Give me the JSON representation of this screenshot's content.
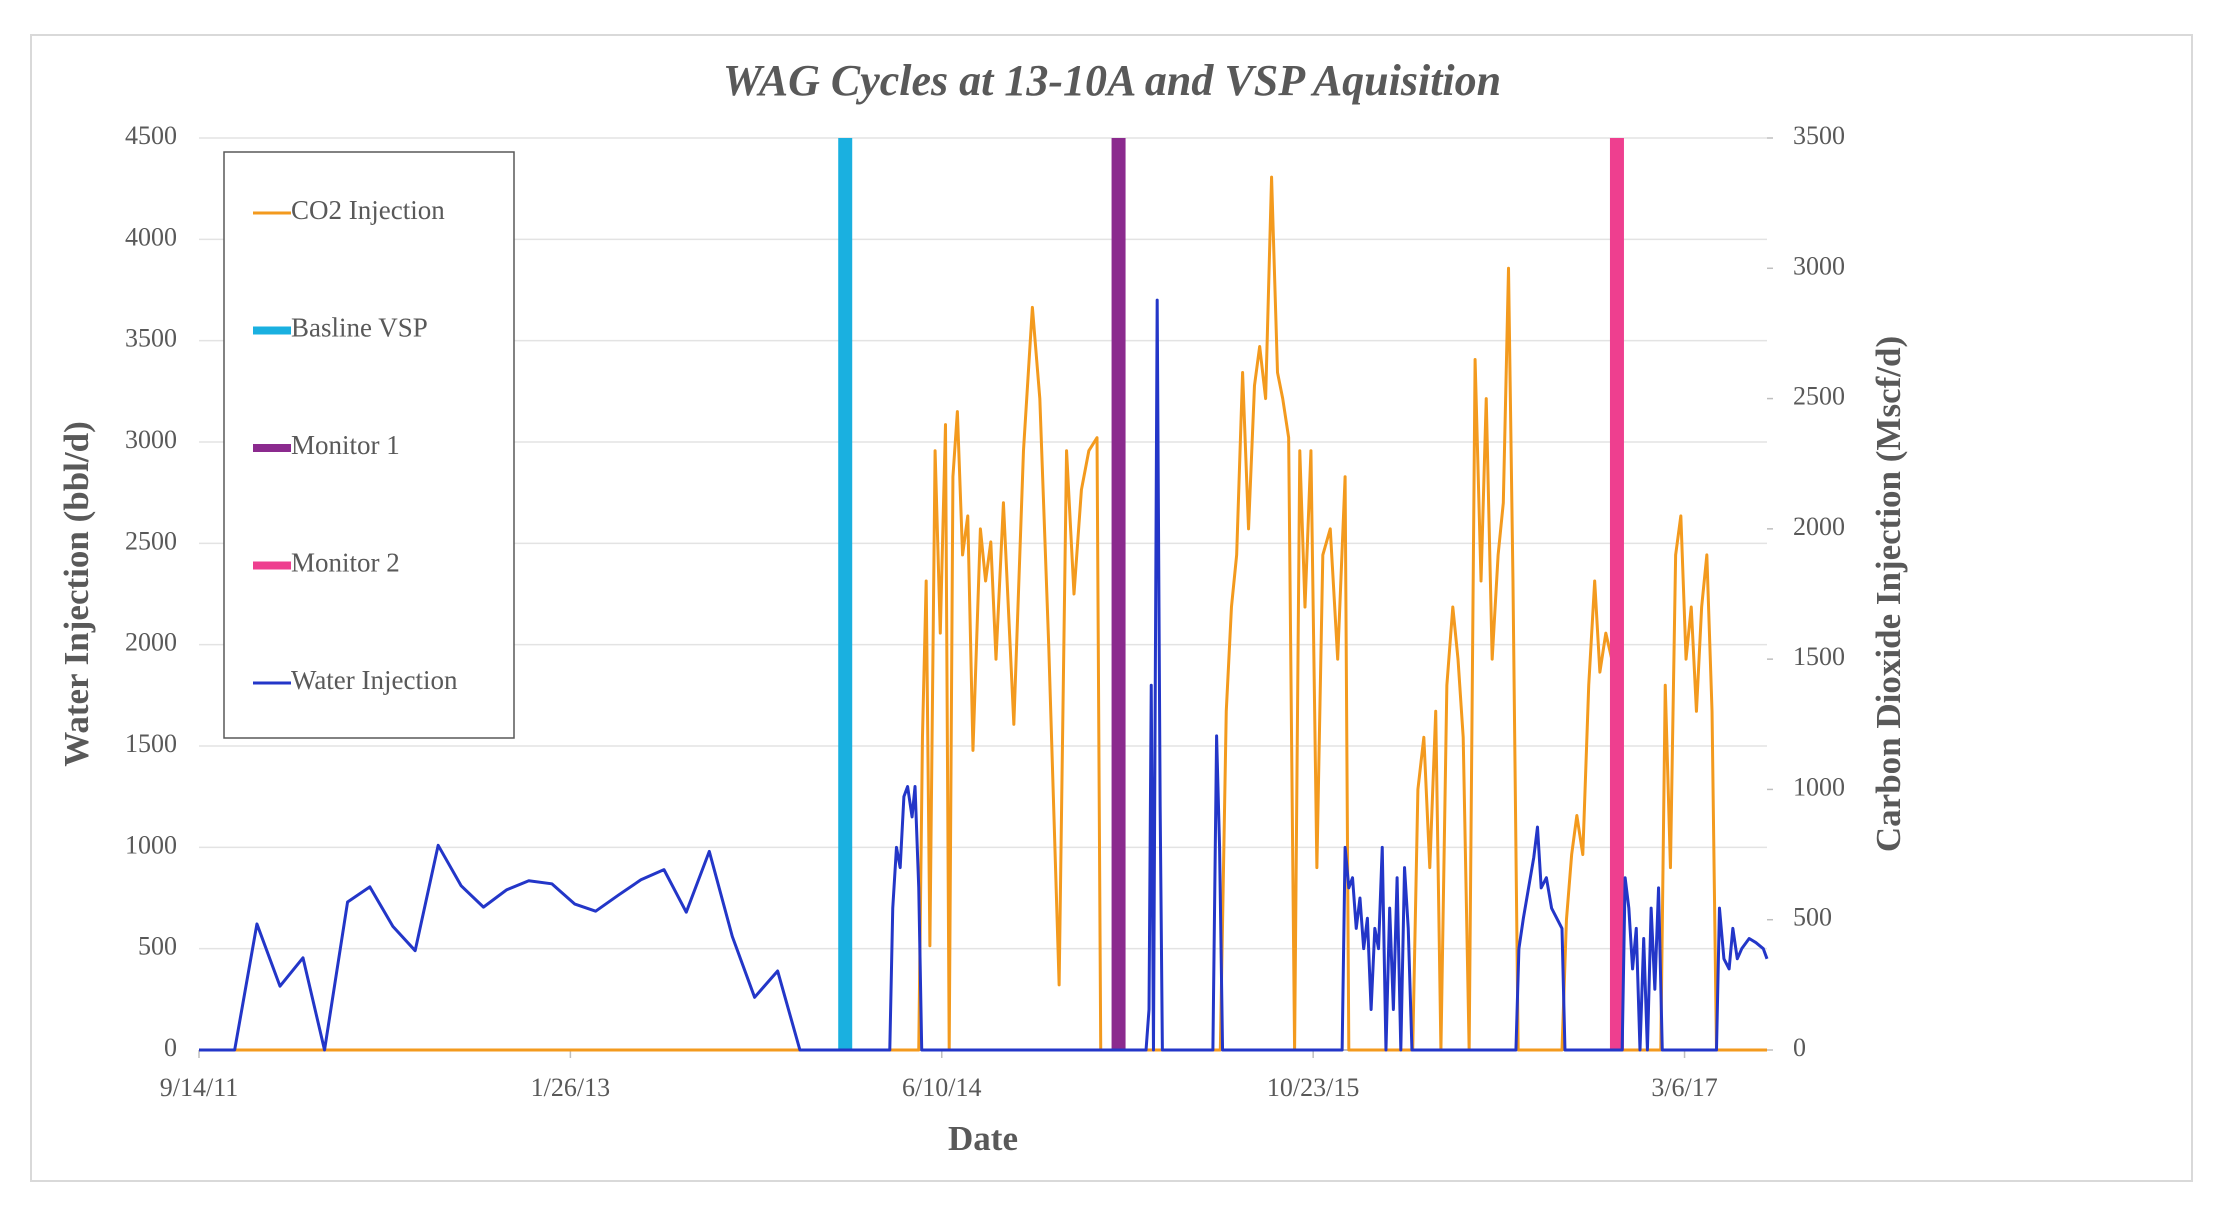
{
  "chart_data": {
    "type": "line",
    "title": "WAG Cycles at 13-10A and VSP Aquisition",
    "x_label": "Date",
    "y_label": "Water Injection (bbl/d)",
    "y2_label": "Carbon Dioxide Injection (Mscf/d)",
    "xlim": [
      "2011-09-14",
      "2017-06-25"
    ],
    "xticks": [
      {
        "value": "2011-09-14",
        "label": "9/14/11"
      },
      {
        "value": "2013-01-26",
        "label": "1/26/13"
      },
      {
        "value": "2014-06-10",
        "label": "6/10/14"
      },
      {
        "value": "2015-10-23",
        "label": "10/23/15"
      },
      {
        "value": "2017-03-06",
        "label": "3/6/17"
      }
    ],
    "ylim": [
      0,
      4500
    ],
    "yticks": [
      0,
      500,
      1000,
      1500,
      2000,
      2500,
      3000,
      3500,
      4000,
      4500
    ],
    "y2lim": [
      0,
      3500
    ],
    "y2ticks": [
      0,
      500,
      1000,
      1500,
      2000,
      2500,
      3000,
      3500
    ],
    "grid": true,
    "legend": "upper left",
    "series": [
      {
        "name": "CO2 Injection",
        "color": "#f39a1e",
        "axis": "y2",
        "x": [
          "2011-09-14",
          "2014-05-10",
          "2014-05-15",
          "2014-05-20",
          "2014-05-25",
          "2014-06-01",
          "2014-06-08",
          "2014-06-15",
          "2014-06-20",
          "2014-06-25",
          "2014-07-01",
          "2014-07-08",
          "2014-07-15",
          "2014-07-22",
          "2014-08-01",
          "2014-08-08",
          "2014-08-15",
          "2014-08-22",
          "2014-09-01",
          "2014-09-15",
          "2014-09-28",
          "2014-10-10",
          "2014-10-20",
          "2014-11-01",
          "2014-11-15",
          "2014-11-25",
          "2014-12-05",
          "2014-12-15",
          "2014-12-25",
          "2015-01-05",
          "2015-01-10",
          "2015-06-20",
          "2015-06-28",
          "2015-07-05",
          "2015-07-12",
          "2015-07-20",
          "2015-07-28",
          "2015-08-05",
          "2015-08-12",
          "2015-08-20",
          "2015-08-28",
          "2015-09-05",
          "2015-09-12",
          "2015-09-20",
          "2015-09-28",
          "2015-10-05",
          "2015-10-12",
          "2015-10-20",
          "2015-10-28",
          "2015-11-05",
          "2015-11-15",
          "2015-11-25",
          "2015-12-05",
          "2015-12-10",
          "2016-03-05",
          "2016-03-12",
          "2016-03-20",
          "2016-03-28",
          "2016-04-05",
          "2016-04-12",
          "2016-04-20",
          "2016-04-28",
          "2016-05-05",
          "2016-05-12",
          "2016-05-20",
          "2016-05-28",
          "2016-06-05",
          "2016-06-12",
          "2016-06-20",
          "2016-06-28",
          "2016-07-05",
          "2016-07-12",
          "2016-07-18",
          "2016-07-25",
          "2016-09-22",
          "2016-09-28",
          "2016-10-05",
          "2016-10-12",
          "2016-10-20",
          "2016-10-28",
          "2016-11-05",
          "2016-11-12",
          "2016-11-20",
          "2016-11-28",
          "2016-12-03",
          "2017-02-02",
          "2017-02-08",
          "2017-02-15",
          "2017-02-22",
          "2017-03-01",
          "2017-03-08",
          "2017-03-15",
          "2017-03-22",
          "2017-03-29",
          "2017-04-05",
          "2017-04-12",
          "2017-04-18",
          "2017-06-25"
        ],
        "values": [
          0,
          0,
          1200,
          1800,
          400,
          2300,
          1600,
          2400,
          0,
          2200,
          2450,
          1900,
          2050,
          1150,
          2000,
          1800,
          1950,
          1500,
          2100,
          1250,
          2300,
          2850,
          2500,
          1550,
          250,
          2300,
          1750,
          2150,
          2300,
          2350,
          0,
          0,
          1300,
          1700,
          1900,
          2600,
          2000,
          2550,
          2700,
          2500,
          3350,
          2600,
          2500,
          2350,
          0,
          2300,
          1700,
          2300,
          700,
          1900,
          2000,
          1500,
          2200,
          0,
          0,
          1000,
          1200,
          700,
          1300,
          0,
          1400,
          1700,
          1500,
          1200,
          0,
          2650,
          1800,
          2500,
          1500,
          1900,
          2100,
          3000,
          1800,
          0,
          0,
          500,
          750,
          900,
          750,
          1400,
          1800,
          1450,
          1600,
          1500,
          0,
          0,
          1400,
          700,
          1900,
          2050,
          1500,
          1700,
          1300,
          1700,
          1900,
          1300,
          0,
          0
        ]
      },
      {
        "name": "Basline VSP",
        "color": "#1ab0e0",
        "axis": "y2",
        "x": [
          "2014-01-31",
          "2014-01-31"
        ],
        "values": [
          0,
          3500
        ]
      },
      {
        "name": "Monitor 1",
        "color": "#8b2a8e",
        "axis": "y2",
        "x": [
          "2015-02-03",
          "2015-02-03"
        ],
        "values": [
          0,
          3500
        ]
      },
      {
        "name": "Monitor 2",
        "color": "#ee3f8f",
        "axis": "y2",
        "x": [
          "2016-12-05",
          "2016-12-05"
        ],
        "values": [
          0,
          3500
        ]
      },
      {
        "name": "Water Injection",
        "color": "#2336c8",
        "x": [
          "2011-09-14",
          "2011-11-01",
          "2011-12-01",
          "2012-01-01",
          "2012-02-01",
          "2012-03-01",
          "2012-04-01",
          "2012-05-01",
          "2012-06-01",
          "2012-07-01",
          "2012-08-01",
          "2012-09-01",
          "2012-10-01",
          "2012-11-01",
          "2012-12-01",
          "2013-01-01",
          "2013-02-01",
          "2013-03-01",
          "2013-04-01",
          "2013-05-01",
          "2013-06-01",
          "2013-07-01",
          "2013-08-01",
          "2013-09-01",
          "2013-10-01",
          "2013-11-01",
          "2013-12-01",
          "2014-04-01",
          "2014-04-05",
          "2014-04-10",
          "2014-04-15",
          "2014-04-20",
          "2014-04-25",
          "2014-05-01",
          "2014-05-05",
          "2014-05-10",
          "2014-05-14",
          "2015-03-12",
          "2015-03-16",
          "2015-03-19",
          "2015-03-22",
          "2015-03-27",
          "2015-03-31",
          "2015-04-03",
          "2015-06-10",
          "2015-06-15",
          "2015-06-19",
          "2015-06-23",
          "2015-12-01",
          "2015-12-05",
          "2015-12-10",
          "2015-12-15",
          "2015-12-20",
          "2015-12-25",
          "2015-12-30",
          "2016-01-04",
          "2016-01-09",
          "2016-01-14",
          "2016-01-19",
          "2016-01-24",
          "2016-01-29",
          "2016-02-03",
          "2016-02-08",
          "2016-02-13",
          "2016-02-18",
          "2016-02-23",
          "2016-02-28",
          "2016-03-04",
          "2016-07-22",
          "2016-07-26",
          "2016-08-01",
          "2016-08-08",
          "2016-08-15",
          "2016-08-20",
          "2016-08-25",
          "2016-09-01",
          "2016-09-08",
          "2016-09-15",
          "2016-09-22",
          "2016-09-26",
          "2016-12-12",
          "2016-12-16",
          "2016-12-21",
          "2016-12-26",
          "2016-12-31",
          "2017-01-05",
          "2017-01-10",
          "2017-01-15",
          "2017-01-20",
          "2017-01-25",
          "2017-01-30",
          "2017-02-04",
          "2017-04-18",
          "2017-04-22",
          "2017-04-28",
          "2017-05-05",
          "2017-05-10",
          "2017-05-16",
          "2017-05-22",
          "2017-06-01",
          "2017-06-10",
          "2017-06-20",
          "2017-06-25"
        ],
        "values": [
          0,
          0,
          622,
          315,
          455,
          0,
          730,
          805,
          610,
          490,
          1010,
          810,
          705,
          790,
          835,
          820,
          720,
          685,
          765,
          840,
          890,
          680,
          980,
          560,
          260,
          390,
          0,
          0,
          700,
          1000,
          900,
          1250,
          1300,
          1150,
          1300,
          800,
          0,
          0,
          200,
          1800,
          0,
          3700,
          1200,
          0,
          0,
          1550,
          1000,
          0,
          0,
          1000,
          800,
          850,
          600,
          750,
          500,
          650,
          200,
          600,
          500,
          1000,
          0,
          700,
          200,
          850,
          0,
          900,
          600,
          0,
          0,
          500,
          650,
          800,
          950,
          1100,
          800,
          850,
          700,
          650,
          600,
          0,
          0,
          850,
          700,
          400,
          600,
          0,
          550,
          0,
          700,
          300,
          800,
          0,
          0,
          700,
          450,
          400,
          600,
          450,
          500,
          550,
          530,
          500,
          450
        ]
      }
    ]
  }
}
